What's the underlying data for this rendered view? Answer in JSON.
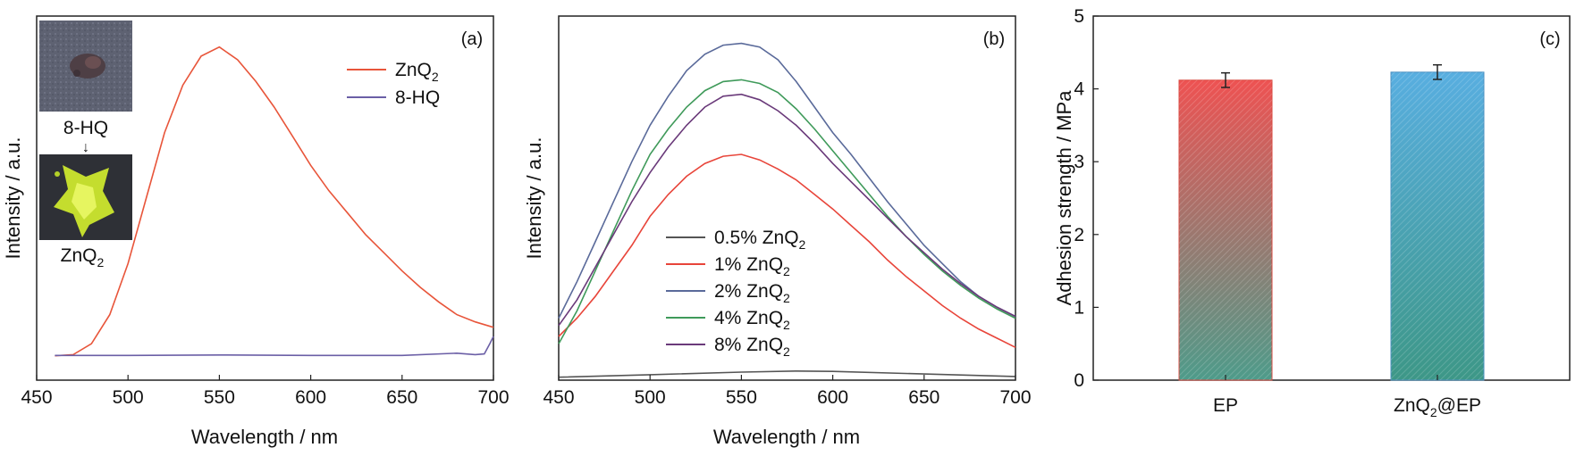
{
  "chart_data": [
    {
      "panel": "(a)",
      "type": "line",
      "xlabel": "Wavelength / nm",
      "ylabel": "Intensity / a.u.",
      "xlim": [
        450,
        700
      ],
      "xticks": [
        450,
        500,
        550,
        600,
        650,
        700
      ],
      "yticks_shown": false,
      "ylim": [
        0,
        100
      ],
      "legend_position": "top-right",
      "series": [
        {
          "name": "ZnQ",
          "name_sub": "2",
          "color": "#e8553a",
          "x": [
            460,
            470,
            480,
            490,
            500,
            510,
            520,
            530,
            540,
            550,
            560,
            570,
            580,
            590,
            600,
            610,
            620,
            630,
            640,
            650,
            660,
            670,
            680,
            690,
            700
          ],
          "y": [
            6.7,
            7,
            10,
            18,
            32,
            50,
            68,
            81,
            89,
            91.5,
            88,
            82,
            75,
            67,
            59,
            52,
            46,
            40,
            35,
            30,
            25.5,
            21.5,
            18,
            16,
            14.5
          ]
        },
        {
          "name": "8-HQ",
          "color": "#6b5fa6",
          "x": [
            460,
            500,
            550,
            600,
            650,
            680,
            690,
            695,
            698,
            700
          ],
          "y": [
            6.8,
            6.8,
            6.9,
            6.8,
            6.8,
            7.4,
            7.0,
            7.2,
            10,
            12
          ]
        }
      ],
      "insets": [
        {
          "label": "8-HQ",
          "arrow": "↓"
        },
        {
          "label": "ZnQ",
          "label_sub": "2"
        }
      ]
    },
    {
      "panel": "(b)",
      "type": "line",
      "xlabel": "Wavelength / nm",
      "ylabel": "Intensity / a.u.",
      "xlim": [
        450,
        700
      ],
      "xticks": [
        450,
        500,
        550,
        600,
        650,
        700
      ],
      "yticks_shown": false,
      "ylim": [
        0,
        100
      ],
      "legend_position": "bottom-center",
      "series": [
        {
          "name": "0.5% ZnQ",
          "name_sub": "2",
          "color": "#555555",
          "x": [
            450,
            500,
            550,
            580,
            600,
            650,
            700
          ],
          "y": [
            0.8,
            1.5,
            2.2,
            2.5,
            2.4,
            1.7,
            1.0
          ]
        },
        {
          "name": "1% ZnQ",
          "name_sub": "2",
          "color": "#e8453a",
          "x": [
            450,
            460,
            470,
            480,
            490,
            500,
            510,
            520,
            530,
            540,
            550,
            560,
            570,
            580,
            590,
            600,
            610,
            620,
            630,
            640,
            650,
            660,
            670,
            680,
            690,
            700
          ],
          "y": [
            12,
            17,
            23,
            30,
            37,
            45,
            51,
            56,
            59.5,
            61.5,
            62,
            60.5,
            58,
            55,
            51,
            47,
            42.5,
            38,
            33,
            28.5,
            24.5,
            20.5,
            17,
            14,
            11.5,
            9
          ]
        },
        {
          "name": "2% ZnQ",
          "name_sub": "2",
          "color": "#5a6a9a",
          "x": [
            450,
            460,
            470,
            480,
            490,
            500,
            510,
            520,
            530,
            540,
            550,
            560,
            570,
            580,
            590,
            600,
            610,
            620,
            630,
            640,
            650,
            660,
            670,
            680,
            690,
            700
          ],
          "y": [
            17,
            27,
            38,
            49,
            60,
            70,
            78,
            85,
            89.5,
            92,
            92.5,
            91.5,
            88,
            82,
            75,
            68,
            62,
            55.5,
            49,
            43,
            37,
            32,
            27,
            23,
            20,
            17.5
          ]
        },
        {
          "name": "4% ZnQ",
          "name_sub": "2",
          "color": "#3f9a5a",
          "x": [
            450,
            460,
            470,
            480,
            490,
            500,
            510,
            520,
            530,
            540,
            550,
            560,
            570,
            580,
            590,
            600,
            610,
            620,
            630,
            640,
            650,
            660,
            670,
            680,
            690,
            700
          ],
          "y": [
            10,
            19,
            30,
            41,
            52,
            62,
            69,
            75,
            79.5,
            82,
            82.5,
            81.5,
            79,
            74.5,
            69,
            63,
            57,
            51,
            45,
            39.5,
            34.5,
            30,
            26,
            22.5,
            19.5,
            17
          ]
        },
        {
          "name": "8% ZnQ",
          "name_sub": "2",
          "color": "#6a3a7a",
          "x": [
            450,
            460,
            470,
            480,
            490,
            500,
            510,
            520,
            530,
            540,
            550,
            560,
            570,
            580,
            590,
            600,
            610,
            620,
            630,
            640,
            650,
            660,
            670,
            680,
            690,
            700
          ],
          "y": [
            15,
            22,
            31,
            40,
            49,
            57,
            64,
            70,
            75,
            78,
            78.5,
            77,
            74,
            70,
            65,
            59.5,
            54.5,
            49.5,
            44.5,
            39.5,
            35,
            30.5,
            26.5,
            23,
            20,
            17.5
          ]
        }
      ]
    },
    {
      "panel": "(c)",
      "type": "bar",
      "xlabel": "",
      "ylabel": "Adhesion strength / MPa",
      "ylim": [
        0,
        5
      ],
      "yticks": [
        0,
        1,
        2,
        3,
        4,
        5
      ],
      "categories": [
        "EP",
        "ZnQ2@EP"
      ],
      "category_labels": [
        {
          "main": "EP"
        },
        {
          "main": "ZnQ",
          "sub": "2",
          "suffix": "@EP"
        }
      ],
      "values": [
        4.12,
        4.23
      ],
      "errors": [
        0.1,
        0.1
      ],
      "colors": [
        [
          "#e64a4a",
          "#4f9e8e"
        ],
        [
          "#4fa8d8",
          "#3f9a8a"
        ]
      ]
    }
  ]
}
